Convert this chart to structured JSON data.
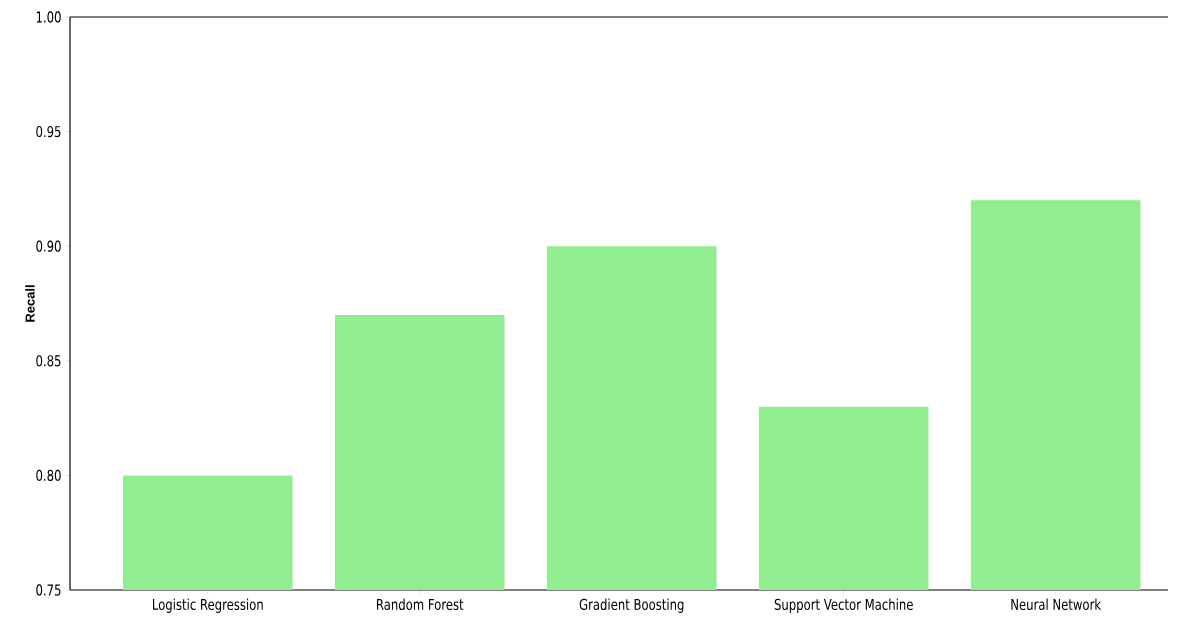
{
  "chart_data": {
    "type": "bar",
    "ylabel": "Recall",
    "categories": [
      "Logistic Regression",
      "Random Forest",
      "Gradient Boosting",
      "Support Vector Machine",
      "Neural Network"
    ],
    "values": [
      0.8,
      0.87,
      0.9,
      0.83,
      0.92
    ],
    "color": "#90ee90",
    "ylim": [
      0.75,
      1.0
    ],
    "yticks": [
      {
        "value": 0.75,
        "label": "0.75"
      },
      {
        "value": 0.8,
        "label": "0.80"
      },
      {
        "value": 0.85,
        "label": "0.85"
      },
      {
        "value": 0.9,
        "label": "0.90"
      },
      {
        "value": 0.95,
        "label": "0.95"
      },
      {
        "value": 1.0,
        "label": "1.00"
      }
    ]
  }
}
